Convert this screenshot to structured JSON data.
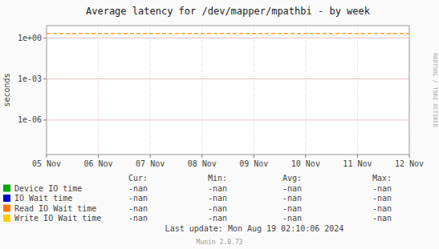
{
  "chart_data": {
    "type": "line",
    "title": "Average latency for /dev/mapper/mpathbi - by week",
    "y_label": "seconds",
    "log": "y",
    "grid": true,
    "legend": "bottom",
    "categories": [
      "05 Nov",
      "06 Nov",
      "07 Nov",
      "08 Nov",
      "09 Nov",
      "10 Nov",
      "11 Nov",
      "12 Nov"
    ],
    "ylim": [
      3e-09,
      8.0
    ],
    "yticks": [
      {
        "value": 1e-06,
        "label": "1e-06"
      },
      {
        "value": 0.001,
        "label": "1e-03"
      },
      {
        "value": 1,
        "label": "1e+00"
      }
    ],
    "hline": {
      "value": 2.1,
      "color": "#ff8800",
      "line_style": "dashed"
    },
    "stat_names": [
      "Cur:",
      "Min:",
      "Avg:",
      "Max:"
    ],
    "series": [
      {
        "name": "Device IO time",
        "color": "#00aa00",
        "values": [
          null,
          null,
          null,
          null,
          null,
          null,
          null,
          null
        ],
        "stats": [
          "-nan",
          "-nan",
          "-nan",
          "-nan"
        ]
      },
      {
        "name": "IO Wait time",
        "color": "#0000cc",
        "values": [
          null,
          null,
          null,
          null,
          null,
          null,
          null,
          null
        ],
        "stats": [
          "-nan",
          "-nan",
          "-nan",
          "-nan"
        ]
      },
      {
        "name": "Read IO Wait time",
        "color": "#ff7700",
        "values": [
          null,
          null,
          null,
          null,
          null,
          null,
          null,
          null
        ],
        "stats": [
          "-nan",
          "-nan",
          "-nan",
          "-nan"
        ]
      },
      {
        "name": "Write IO Wait time",
        "color": "#ffcc00",
        "values": [
          null,
          null,
          null,
          null,
          null,
          null,
          null,
          null
        ],
        "stats": [
          "-nan",
          "-nan",
          "-nan",
          "-nan"
        ]
      }
    ],
    "annotations": [
      "Last update: Mon Aug 19 02:10:06 2024",
      "Munin 2.0.73",
      "RRDTOOL / TOBI OETIKER"
    ]
  }
}
